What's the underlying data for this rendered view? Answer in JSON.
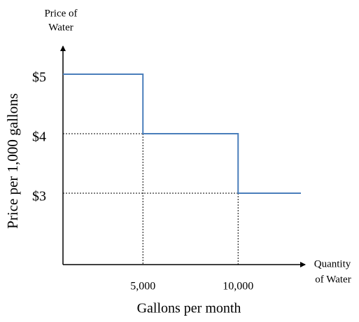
{
  "chart_data": {
    "type": "line",
    "y_axis_end_label": [
      "Price of",
      "Water"
    ],
    "x_axis_end_label": [
      "Quantity",
      "of Water"
    ],
    "ylabel": "Price per 1,000 gallons",
    "xlabel": "Gallons per month",
    "x": [
      800,
      5000,
      5000,
      10000,
      10000,
      13300
    ],
    "series": [
      {
        "color": "#4a7ebb",
        "values": [
          5,
          5,
          4,
          4,
          3,
          3
        ]
      }
    ],
    "xlim": [
      800,
      13300
    ],
    "ylim": [
      1.8,
      5.4
    ],
    "xticks": [
      {
        "value": 5000,
        "label": "5,000"
      },
      {
        "value": 10000,
        "label": "10,000"
      }
    ],
    "yticks": [
      {
        "value": 3,
        "label": "$3"
      },
      {
        "value": 4,
        "label": "$4"
      },
      {
        "value": 5,
        "label": "$5"
      }
    ]
  }
}
